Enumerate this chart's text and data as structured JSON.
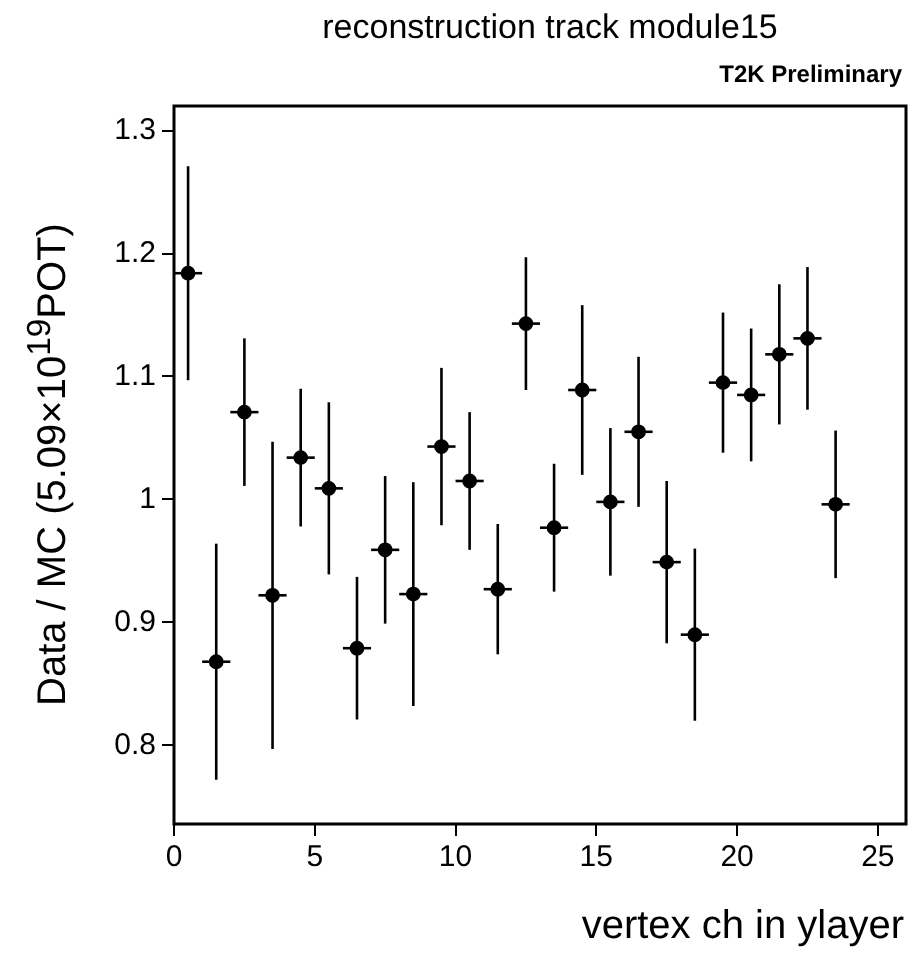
{
  "chart_data": {
    "type": "scatter",
    "title": "reconstruction track module15",
    "annotations": [
      "T2K Preliminary"
    ],
    "xlabel": "vertex ch in ylayer",
    "ylabel": "Data / MC (5.09×10$^{19}$POT)",
    "x": [
      0.5,
      1.5,
      2.5,
      3.5,
      4.5,
      5.5,
      6.5,
      7.5,
      8.5,
      9.5,
      10.5,
      11.5,
      12.5,
      13.5,
      14.5,
      15.5,
      16.5,
      17.5,
      18.5,
      19.5,
      20.5,
      21.5,
      22.5,
      23.5
    ],
    "values": [
      1.184,
      0.868,
      1.071,
      0.922,
      1.034,
      1.009,
      0.879,
      0.959,
      0.923,
      1.043,
      1.015,
      0.927,
      1.143,
      0.977,
      1.089,
      0.998,
      1.055,
      0.949,
      0.89,
      1.095,
      1.085,
      1.118,
      1.131,
      0.996
    ],
    "errors": [
      0.087,
      0.096,
      0.06,
      0.125,
      0.056,
      0.07,
      0.058,
      0.06,
      0.091,
      0.064,
      0.056,
      0.053,
      0.054,
      0.052,
      0.069,
      0.06,
      0.061,
      0.066,
      0.07,
      0.057,
      0.054,
      0.057,
      0.058,
      0.06
    ],
    "xerrors": [
      0.5,
      0.5,
      0.5,
      0.5,
      0.5,
      0.5,
      0.5,
      0.5,
      0.5,
      0.5,
      0.5,
      0.5,
      0.5,
      0.5,
      0.5,
      0.5,
      0.5,
      0.5,
      0.5,
      0.5,
      0.5,
      0.5,
      0.5,
      0.5
    ],
    "color": "#000000",
    "marker": "circle",
    "xlim": [
      0,
      26
    ],
    "ylim": [
      0.736,
      1.32
    ],
    "xticks": [
      0,
      5,
      10,
      15,
      20,
      25
    ],
    "yticks": [
      0.8,
      0.9,
      1,
      1.1,
      1.2,
      1.3
    ]
  }
}
